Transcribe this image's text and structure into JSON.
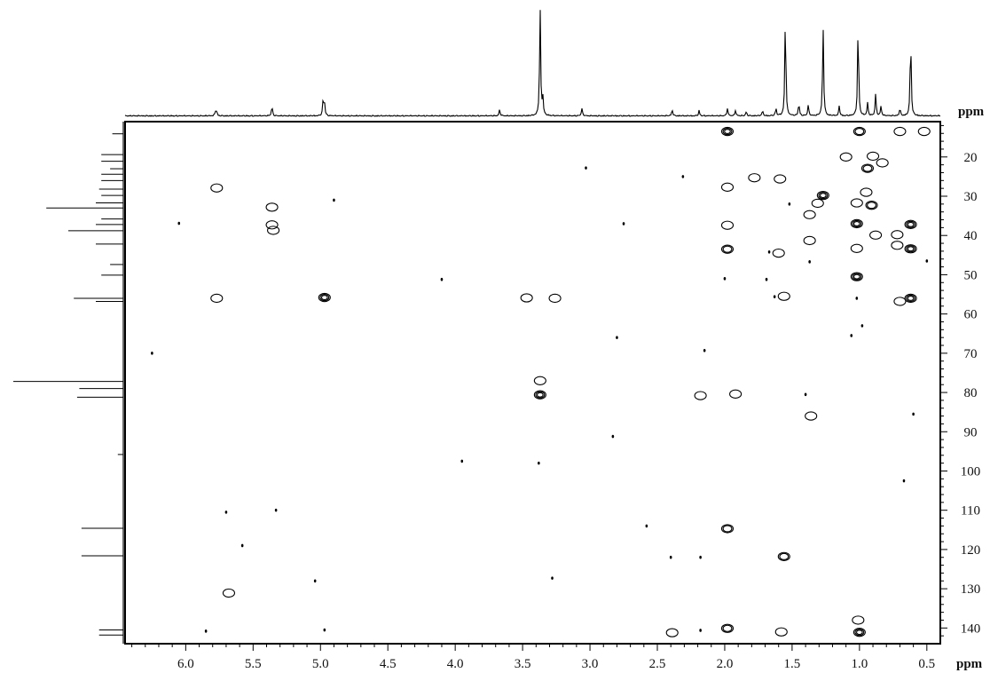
{
  "chart_data": {
    "type": "scatter",
    "subtype": "2D NMR contour plot (HSQC/HMBC style) with 1D projections",
    "x_axis": {
      "unit_label": "ppm",
      "reversed": true,
      "range": [
        6.45,
        0.4
      ],
      "ticks": [
        6.0,
        5.5,
        5.0,
        4.5,
        4.0,
        3.5,
        3.0,
        2.5,
        2.0,
        1.5,
        1.0,
        0.5
      ],
      "tick_labels": [
        "6.0",
        "5.5",
        "5.0",
        "4.5",
        "4.0",
        "3.5",
        "3.0",
        "2.5",
        "2.0",
        "1.5",
        "1.0",
        "0.5"
      ]
    },
    "y_axis": {
      "unit_label": "ppm",
      "reversed": true,
      "range": [
        11,
        144
      ],
      "ticks": [
        20,
        30,
        40,
        50,
        60,
        70,
        80,
        90,
        100,
        110,
        120,
        130,
        140
      ],
      "tick_labels": [
        "20",
        "30",
        "40",
        "50",
        "60",
        "70",
        "80",
        "90",
        "100",
        "110",
        "120",
        "130",
        "140"
      ]
    },
    "top_projection_peaks": [
      {
        "x": 5.78,
        "h": 0.04
      },
      {
        "x": 5.77,
        "h": 0.04
      },
      {
        "x": 5.36,
        "h": 0.09
      },
      {
        "x": 4.98,
        "h": 0.15
      },
      {
        "x": 4.97,
        "h": 0.11
      },
      {
        "x": 3.67,
        "h": 0.06
      },
      {
        "x": 3.37,
        "h": 1.0
      },
      {
        "x": 3.35,
        "h": 0.16
      },
      {
        "x": 3.06,
        "h": 0.07
      },
      {
        "x": 2.39,
        "h": 0.06
      },
      {
        "x": 2.19,
        "h": 0.05
      },
      {
        "x": 1.98,
        "h": 0.07
      },
      {
        "x": 1.92,
        "h": 0.05
      },
      {
        "x": 1.84,
        "h": 0.04
      },
      {
        "x": 1.72,
        "h": 0.05
      },
      {
        "x": 1.62,
        "h": 0.07
      },
      {
        "x": 1.55,
        "h": 0.93
      },
      {
        "x": 1.45,
        "h": 0.12
      },
      {
        "x": 1.38,
        "h": 0.1
      },
      {
        "x": 1.27,
        "h": 0.83
      },
      {
        "x": 1.15,
        "h": 0.09
      },
      {
        "x": 1.01,
        "h": 0.86
      },
      {
        "x": 0.94,
        "h": 0.12
      },
      {
        "x": 0.88,
        "h": 0.2
      },
      {
        "x": 0.84,
        "h": 0.09
      },
      {
        "x": 0.7,
        "h": 0.07
      },
      {
        "x": 0.62,
        "h": 0.75
      }
    ],
    "side_projection_peaks": [
      {
        "y": 14.1,
        "h": 0.1
      },
      {
        "y": 19.4,
        "h": 0.2
      },
      {
        "y": 21.1,
        "h": 0.2
      },
      {
        "y": 23.0,
        "h": 0.12
      },
      {
        "y": 24.4,
        "h": 0.2
      },
      {
        "y": 26.0,
        "h": 0.2
      },
      {
        "y": 28.2,
        "h": 0.22
      },
      {
        "y": 29.8,
        "h": 0.2
      },
      {
        "y": 31.7,
        "h": 0.25
      },
      {
        "y": 33.0,
        "h": 0.7
      },
      {
        "y": 35.8,
        "h": 0.2
      },
      {
        "y": 37.2,
        "h": 0.25
      },
      {
        "y": 38.8,
        "h": 0.5
      },
      {
        "y": 42.2,
        "h": 0.25
      },
      {
        "y": 47.4,
        "h": 0.12
      },
      {
        "y": 50.1,
        "h": 0.2
      },
      {
        "y": 56.0,
        "h": 0.45
      },
      {
        "y": 56.8,
        "h": 0.25
      },
      {
        "y": 77.2,
        "h": 1.0
      },
      {
        "y": 79.0,
        "h": 0.4
      },
      {
        "y": 81.2,
        "h": 0.42
      },
      {
        "y": 95.8,
        "h": 0.05
      },
      {
        "y": 114.6,
        "h": 0.38
      },
      {
        "y": 121.6,
        "h": 0.38
      },
      {
        "y": 140.5,
        "h": 0.22
      },
      {
        "y": 141.8,
        "h": 0.22
      }
    ],
    "cross_peaks": [
      {
        "x": 1.98,
        "y": 13.5,
        "i": 3
      },
      {
        "x": 1.0,
        "y": 13.5,
        "i": 2
      },
      {
        "x": 0.7,
        "y": 13.5,
        "i": 1
      },
      {
        "x": 0.52,
        "y": 13.5,
        "i": 1
      },
      {
        "x": 1.1,
        "y": 20.0,
        "i": 1
      },
      {
        "x": 0.9,
        "y": 19.8,
        "i": 1
      },
      {
        "x": 0.94,
        "y": 22.9,
        "i": 2
      },
      {
        "x": 0.83,
        "y": 21.5,
        "i": 1
      },
      {
        "x": 1.78,
        "y": 25.3,
        "i": 1
      },
      {
        "x": 1.59,
        "y": 25.6,
        "i": 1
      },
      {
        "x": 5.77,
        "y": 27.9,
        "i": 1
      },
      {
        "x": 1.98,
        "y": 27.7,
        "i": 1
      },
      {
        "x": 1.27,
        "y": 29.8,
        "i": 3
      },
      {
        "x": 1.31,
        "y": 31.8,
        "i": 1
      },
      {
        "x": 1.02,
        "y": 31.7,
        "i": 1
      },
      {
        "x": 0.95,
        "y": 29.0,
        "i": 1
      },
      {
        "x": 0.91,
        "y": 32.3,
        "i": 2
      },
      {
        "x": 5.36,
        "y": 32.8,
        "i": 1
      },
      {
        "x": 1.37,
        "y": 34.7,
        "i": 1
      },
      {
        "x": 1.02,
        "y": 37.0,
        "i": 3
      },
      {
        "x": 0.62,
        "y": 37.2,
        "i": 3
      },
      {
        "x": 5.36,
        "y": 37.3,
        "i": 1
      },
      {
        "x": 5.35,
        "y": 38.7,
        "i": 1
      },
      {
        "x": 1.98,
        "y": 37.4,
        "i": 1
      },
      {
        "x": 0.72,
        "y": 39.8,
        "i": 1
      },
      {
        "x": 0.88,
        "y": 39.9,
        "i": 1
      },
      {
        "x": 1.37,
        "y": 41.3,
        "i": 1
      },
      {
        "x": 1.98,
        "y": 43.5,
        "i": 2
      },
      {
        "x": 1.6,
        "y": 44.5,
        "i": 1
      },
      {
        "x": 0.62,
        "y": 43.4,
        "i": 3
      },
      {
        "x": 0.72,
        "y": 42.5,
        "i": 1
      },
      {
        "x": 1.02,
        "y": 43.3,
        "i": 1
      },
      {
        "x": 1.02,
        "y": 50.5,
        "i": 3
      },
      {
        "x": 5.77,
        "y": 56.0,
        "i": 1
      },
      {
        "x": 4.97,
        "y": 55.8,
        "i": 3
      },
      {
        "x": 3.47,
        "y": 55.9,
        "i": 1
      },
      {
        "x": 3.26,
        "y": 56.0,
        "i": 1
      },
      {
        "x": 0.62,
        "y": 56.0,
        "i": 3
      },
      {
        "x": 0.7,
        "y": 56.8,
        "i": 1
      },
      {
        "x": 1.56,
        "y": 55.5,
        "i": 1
      },
      {
        "x": 3.37,
        "y": 77.0,
        "i": 1
      },
      {
        "x": 3.37,
        "y": 80.6,
        "i": 3
      },
      {
        "x": 2.18,
        "y": 80.8,
        "i": 1
      },
      {
        "x": 1.92,
        "y": 80.4,
        "i": 1
      },
      {
        "x": 1.36,
        "y": 86.0,
        "i": 1
      },
      {
        "x": 1.98,
        "y": 114.7,
        "i": 2
      },
      {
        "x": 1.56,
        "y": 121.8,
        "i": 2
      },
      {
        "x": 5.68,
        "y": 131.1,
        "i": 1
      },
      {
        "x": 1.98,
        "y": 140.1,
        "i": 2
      },
      {
        "x": 1.58,
        "y": 141.0,
        "i": 1
      },
      {
        "x": 1.0,
        "y": 141.1,
        "i": 3
      },
      {
        "x": 2.39,
        "y": 141.2,
        "i": 1
      },
      {
        "x": 1.01,
        "y": 138.0,
        "i": 1
      }
    ],
    "noise_dots": [
      {
        "x": 6.05,
        "y": 36.9
      },
      {
        "x": 6.25,
        "y": 70.0
      },
      {
        "x": 5.85,
        "y": 140.8
      },
      {
        "x": 5.7,
        "y": 110.5
      },
      {
        "x": 5.58,
        "y": 119.0
      },
      {
        "x": 5.33,
        "y": 110.0
      },
      {
        "x": 5.04,
        "y": 128.0
      },
      {
        "x": 4.97,
        "y": 140.5
      },
      {
        "x": 4.9,
        "y": 31.0
      },
      {
        "x": 4.1,
        "y": 51.2
      },
      {
        "x": 3.95,
        "y": 97.5
      },
      {
        "x": 3.38,
        "y": 98.0
      },
      {
        "x": 3.28,
        "y": 127.3
      },
      {
        "x": 3.03,
        "y": 22.8
      },
      {
        "x": 2.83,
        "y": 91.2
      },
      {
        "x": 2.8,
        "y": 66.0
      },
      {
        "x": 2.75,
        "y": 37.0
      },
      {
        "x": 2.58,
        "y": 114.0
      },
      {
        "x": 2.4,
        "y": 122.0
      },
      {
        "x": 2.31,
        "y": 25.0
      },
      {
        "x": 2.18,
        "y": 122.0
      },
      {
        "x": 2.18,
        "y": 140.6
      },
      {
        "x": 2.15,
        "y": 69.3
      },
      {
        "x": 2.0,
        "y": 51.0
      },
      {
        "x": 1.69,
        "y": 51.2
      },
      {
        "x": 1.67,
        "y": 44.2
      },
      {
        "x": 1.63,
        "y": 55.6
      },
      {
        "x": 1.52,
        "y": 32.0
      },
      {
        "x": 1.4,
        "y": 80.5
      },
      {
        "x": 1.37,
        "y": 46.7
      },
      {
        "x": 1.06,
        "y": 65.5
      },
      {
        "x": 1.02,
        "y": 56.0
      },
      {
        "x": 0.98,
        "y": 63.0
      },
      {
        "x": 0.67,
        "y": 102.5
      },
      {
        "x": 0.6,
        "y": 85.5
      },
      {
        "x": 0.5,
        "y": 46.5
      }
    ]
  }
}
